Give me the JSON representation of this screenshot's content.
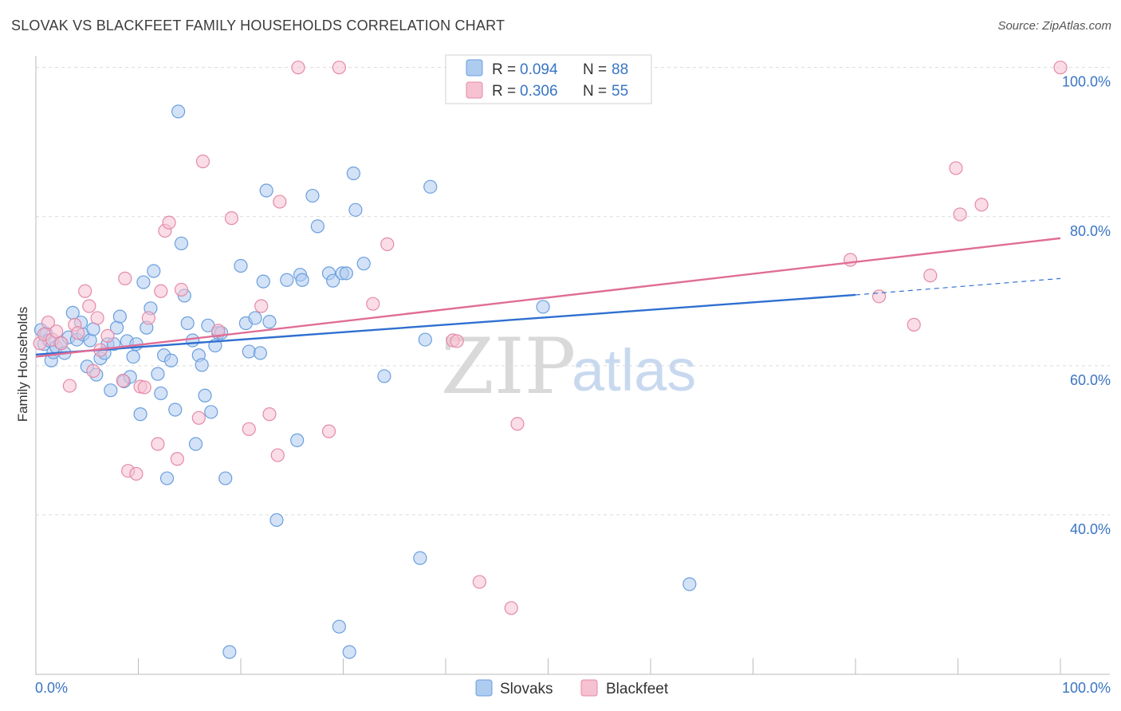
{
  "title": "SLOVAK VS BLACKFEET FAMILY HOUSEHOLDS CORRELATION CHART",
  "source": "Source: ZipAtlas.com",
  "watermark": {
    "zip": "ZIP",
    "atlas": "atlas"
  },
  "legend": [
    {
      "r_label": "R =",
      "r_value": "0.094",
      "n_label": "N =",
      "n_value": "88",
      "color": "#aecbf0",
      "stroke": "#6b9fdd"
    },
    {
      "r_label": "R =",
      "r_value": "0.306",
      "n_label": "N =",
      "n_value": "55",
      "color": "#f6c1d1",
      "stroke": "#e48aa8"
    }
  ],
  "bottom_legend": [
    "Slovaks",
    "Blackfeet"
  ],
  "chart_data": {
    "type": "scatter",
    "title": "SLOVAK VS BLACKFEET FAMILY HOUSEHOLDS CORRELATION CHART",
    "xlabel": "",
    "ylabel": "Family Households",
    "xlim": [
      0,
      100
    ],
    "ylim": [
      18.5,
      100.5
    ],
    "x_tick_labels": [
      "0.0%",
      "100.0%"
    ],
    "y_ticks": [
      40,
      60,
      80,
      100
    ],
    "y_tick_labels": [
      "40.0%",
      "60.0%",
      "80.0%",
      "100.0%"
    ],
    "grid": "horizontal dashed",
    "series": [
      {
        "name": "Slovaks",
        "color": "#6b9fdd",
        "fill": "#aecbf0",
        "trend": {
          "x0": 0,
          "y0": 61.5,
          "x1": 80,
          "y1": 69.5,
          "dash_to_x": 100,
          "dash_to_y": 71.7,
          "color": "#2f6fd0"
        },
        "points": [
          [
            0.5,
            64.8
          ],
          [
            0.8,
            62.9
          ],
          [
            1.0,
            64.3
          ],
          [
            1.3,
            63.4
          ],
          [
            1.5,
            60.7
          ],
          [
            1.7,
            61.8
          ],
          [
            2.0,
            62.5
          ],
          [
            2.4,
            63.1
          ],
          [
            2.8,
            61.7
          ],
          [
            3.2,
            63.8
          ],
          [
            3.6,
            67.1
          ],
          [
            4.0,
            63.5
          ],
          [
            4.4,
            65.8
          ],
          [
            4.6,
            64.2
          ],
          [
            5.0,
            59.9
          ],
          [
            5.3,
            63.4
          ],
          [
            5.6,
            64.9
          ],
          [
            5.9,
            58.8
          ],
          [
            6.3,
            61.0
          ],
          [
            6.7,
            61.7
          ],
          [
            7.0,
            62.9
          ],
          [
            7.3,
            56.7
          ],
          [
            7.6,
            62.9
          ],
          [
            7.9,
            65.1
          ],
          [
            8.2,
            66.6
          ],
          [
            8.6,
            57.9
          ],
          [
            8.9,
            63.3
          ],
          [
            9.2,
            58.5
          ],
          [
            9.5,
            61.2
          ],
          [
            9.8,
            62.9
          ],
          [
            10.2,
            53.5
          ],
          [
            10.5,
            71.2
          ],
          [
            10.8,
            65.1
          ],
          [
            11.2,
            67.7
          ],
          [
            11.5,
            72.7
          ],
          [
            11.9,
            58.9
          ],
          [
            12.2,
            56.3
          ],
          [
            12.5,
            61.4
          ],
          [
            12.8,
            44.9
          ],
          [
            13.2,
            60.7
          ],
          [
            13.6,
            54.1
          ],
          [
            13.9,
            94.1
          ],
          [
            14.2,
            76.4
          ],
          [
            14.5,
            69.4
          ],
          [
            14.8,
            65.7
          ],
          [
            15.3,
            63.4
          ],
          [
            15.6,
            49.5
          ],
          [
            15.9,
            61.4
          ],
          [
            16.2,
            60.1
          ],
          [
            16.5,
            56.0
          ],
          [
            16.8,
            65.4
          ],
          [
            17.1,
            53.8
          ],
          [
            17.5,
            62.7
          ],
          [
            17.8,
            64.4
          ],
          [
            18.1,
            64.4
          ],
          [
            18.5,
            44.9
          ],
          [
            18.9,
            21.6
          ],
          [
            20.0,
            73.4
          ],
          [
            20.5,
            65.7
          ],
          [
            20.8,
            61.9
          ],
          [
            21.4,
            66.4
          ],
          [
            21.9,
            61.7
          ],
          [
            22.2,
            71.3
          ],
          [
            22.5,
            83.5
          ],
          [
            22.8,
            65.9
          ],
          [
            23.5,
            39.3
          ],
          [
            24.5,
            71.5
          ],
          [
            25.5,
            50.0
          ],
          [
            25.8,
            72.2
          ],
          [
            26.0,
            71.5
          ],
          [
            27.0,
            82.8
          ],
          [
            27.5,
            78.7
          ],
          [
            28.6,
            72.4
          ],
          [
            29.0,
            71.4
          ],
          [
            29.6,
            25.0
          ],
          [
            29.9,
            72.4
          ],
          [
            30.3,
            72.4
          ],
          [
            30.6,
            21.6
          ],
          [
            31.0,
            85.8
          ],
          [
            31.2,
            80.9
          ],
          [
            32.0,
            73.7
          ],
          [
            34.0,
            58.6
          ],
          [
            37.5,
            34.2
          ],
          [
            38.0,
            63.5
          ],
          [
            38.5,
            84.0
          ],
          [
            49.5,
            67.9
          ],
          [
            51.5,
            100.0
          ],
          [
            63.8,
            30.7
          ]
        ]
      },
      {
        "name": "Blackfeet",
        "color": "#e48aa8",
        "fill": "#f6c1d1",
        "trend": {
          "x0": 0,
          "y0": 61.2,
          "x1": 100,
          "y1": 77.1,
          "color": "#e06d96"
        },
        "points": [
          [
            0.4,
            63.0
          ],
          [
            0.8,
            64.2
          ],
          [
            1.2,
            65.8
          ],
          [
            1.6,
            63.5
          ],
          [
            2.0,
            64.6
          ],
          [
            2.5,
            63.0
          ],
          [
            3.3,
            57.3
          ],
          [
            3.8,
            65.5
          ],
          [
            4.1,
            64.4
          ],
          [
            4.8,
            70.0
          ],
          [
            5.2,
            68.0
          ],
          [
            5.6,
            59.3
          ],
          [
            6.0,
            66.4
          ],
          [
            6.3,
            62.1
          ],
          [
            7.0,
            64.0
          ],
          [
            8.5,
            58.0
          ],
          [
            8.7,
            71.7
          ],
          [
            9.0,
            45.9
          ],
          [
            9.8,
            45.5
          ],
          [
            10.2,
            57.2
          ],
          [
            10.6,
            57.1
          ],
          [
            11.0,
            66.4
          ],
          [
            11.9,
            49.5
          ],
          [
            12.2,
            70.0
          ],
          [
            12.6,
            78.1
          ],
          [
            13.0,
            79.2
          ],
          [
            13.8,
            47.5
          ],
          [
            14.2,
            70.2
          ],
          [
            15.9,
            53.0
          ],
          [
            16.3,
            87.4
          ],
          [
            17.8,
            64.7
          ],
          [
            19.1,
            79.8
          ],
          [
            20.8,
            51.5
          ],
          [
            22.0,
            68.0
          ],
          [
            22.8,
            53.5
          ],
          [
            23.6,
            48.0
          ],
          [
            23.8,
            82.0
          ],
          [
            25.6,
            100.0
          ],
          [
            28.6,
            51.2
          ],
          [
            29.6,
            100.0
          ],
          [
            32.9,
            68.3
          ],
          [
            34.3,
            76.3
          ],
          [
            40.7,
            63.4
          ],
          [
            41.1,
            63.3
          ],
          [
            43.3,
            31.0
          ],
          [
            46.4,
            27.5
          ],
          [
            47.0,
            52.2
          ],
          [
            79.5,
            74.2
          ],
          [
            82.3,
            69.3
          ],
          [
            85.7,
            65.5
          ],
          [
            87.3,
            72.1
          ],
          [
            89.8,
            86.5
          ],
          [
            90.2,
            80.3
          ],
          [
            92.3,
            81.6
          ],
          [
            100.0,
            100.0
          ]
        ]
      }
    ]
  }
}
